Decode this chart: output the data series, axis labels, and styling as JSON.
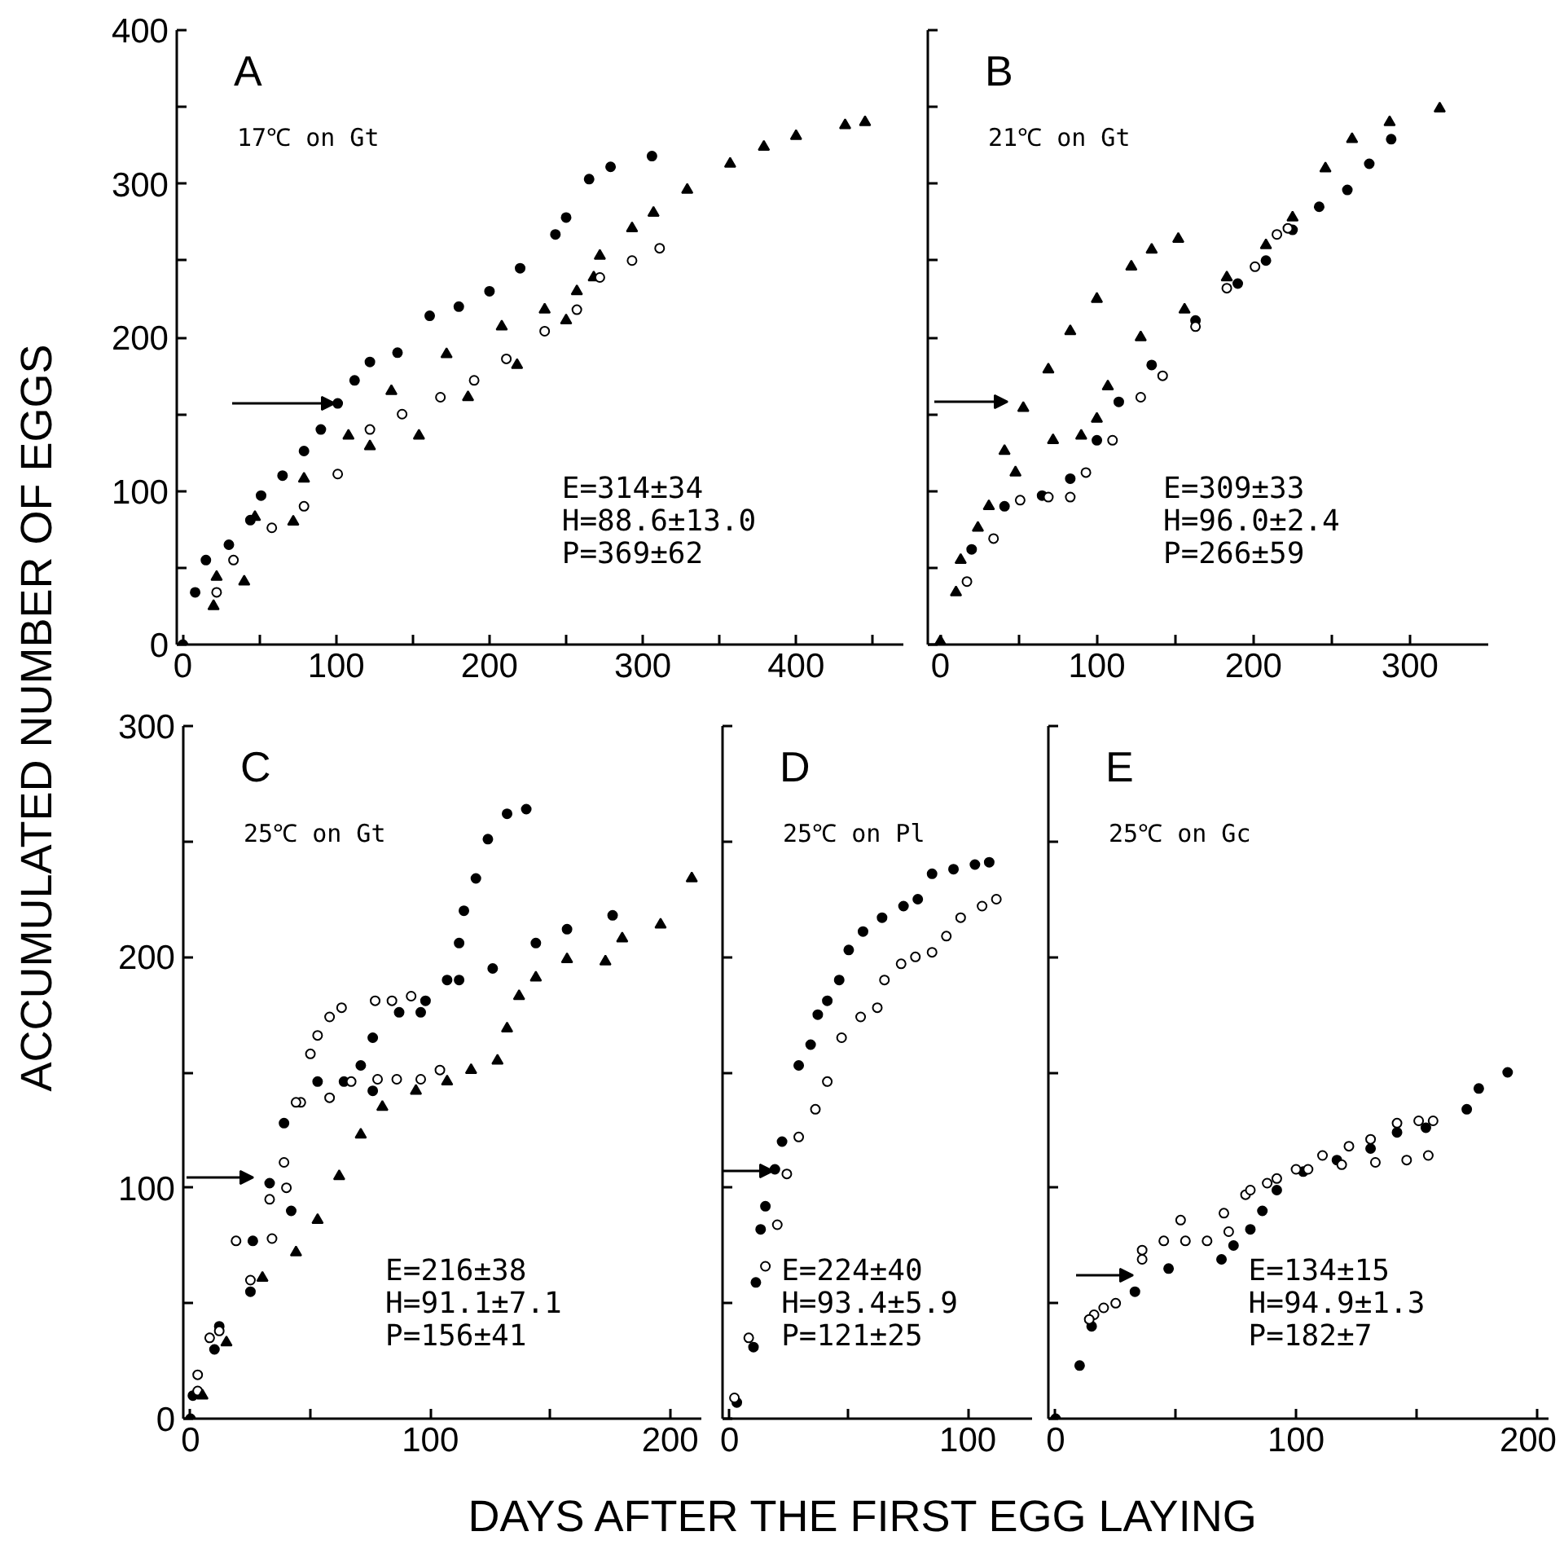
{
  "chart_data": [
    {
      "type": "scatter",
      "title": "A",
      "subtitle": "17℃ on Gt",
      "ylabel": "ACCUMULATED NUMBER OF EGGS",
      "xlim": [
        -4,
        470
      ],
      "ylim": [
        0,
        400
      ],
      "xticks": [
        0,
        {
          "value": 50,
          "label": null
        },
        100,
        {
          "value": 150,
          "label": null
        },
        200,
        {
          "value": 250,
          "label": null
        },
        300,
        {
          "value": 350,
          "label": null
        },
        400,
        {
          "value": 450,
          "label": null
        }
      ],
      "yticks": [
        0,
        {
          "value": 50,
          "label": null
        },
        100,
        {
          "value": 150,
          "label": null
        },
        200,
        {
          "value": 250,
          "label": null
        },
        300,
        {
          "value": 350,
          "label": null
        },
        400
      ],
      "annotations": [
        "E=314±34",
        "H=88.6±13.0",
        "P=369±62"
      ],
      "series": [
        {
          "marker": "circle",
          "color": "#000000",
          "x": [
            0,
            8,
            15,
            30,
            44,
            51,
            65,
            79,
            90,
            101,
            112,
            122,
            140,
            161,
            180,
            200,
            220,
            243,
            250,
            265,
            279,
            306
          ],
          "values": [
            0,
            34,
            55,
            65,
            81,
            97,
            110,
            126,
            140,
            157,
            172,
            184,
            190,
            214,
            220,
            230,
            245,
            267,
            278,
            303,
            311,
            318
          ]
        },
        {
          "marker": "triangle",
          "color": "#000000",
          "x": [
            22,
            47,
            79,
            108,
            136,
            172,
            208,
            236,
            257,
            272
          ],
          "values": [
            44,
            83,
            108,
            136,
            165,
            189,
            207,
            218,
            230,
            253
          ]
        },
        {
          "marker": "triangle",
          "color": "#000000",
          "x": [
            20,
            40,
            72,
            122,
            154,
            186,
            218,
            250,
            268,
            293,
            307,
            329,
            357,
            379,
            400,
            432,
            445
          ],
          "values": [
            25,
            41,
            80,
            129,
            136,
            161,
            182,
            211,
            239,
            271,
            281,
            296,
            313,
            324,
            331,
            338,
            340
          ]
        },
        {
          "marker": "circle",
          "color": "#ffffff",
          "x": [
            22,
            33,
            58,
            79,
            101,
            122,
            143,
            168,
            190,
            211,
            236,
            257,
            272,
            293,
            311
          ],
          "values": [
            34,
            55,
            76,
            90,
            111,
            140,
            150,
            161,
            172,
            186,
            204,
            218,
            239,
            250,
            258
          ]
        }
      ]
    },
    {
      "type": "scatter",
      "title": "B",
      "subtitle": "21℃ on Gt",
      "xlim": [
        -8,
        350
      ],
      "ylim": [
        0,
        400
      ],
      "tick_labels": "x",
      "xticks": [
        0,
        {
          "value": 50,
          "label": null
        },
        100,
        {
          "value": 150,
          "label": null
        },
        200,
        {
          "value": 250,
          "label": null
        },
        300
      ],
      "yticks": [
        0,
        {
          "value": 50,
          "label": null
        },
        100,
        {
          "value": 150,
          "label": null
        },
        200,
        {
          "value": 250,
          "label": null
        },
        300,
        {
          "value": 350,
          "label": null
        },
        400
      ],
      "annotations": [
        "E=309±33",
        "H=96.0±2.4",
        "P=266±59"
      ],
      "series": [
        {
          "marker": "triangle",
          "color": "#000000",
          "x": [
            0,
            10,
            24,
            41,
            53,
            69,
            83,
            100,
            122,
            135,
            152
          ],
          "values": [
            2,
            34,
            76,
            126,
            154,
            179,
            204,
            225,
            246,
            257,
            264
          ]
        },
        {
          "marker": "triangle",
          "color": "#000000",
          "x": [
            13,
            31,
            48,
            72,
            90,
            100,
            107,
            128,
            156,
            183,
            208,
            225,
            246,
            263,
            287,
            319
          ],
          "values": [
            55,
            90,
            112,
            133,
            136,
            147,
            168,
            200,
            218,
            239,
            260,
            278,
            310,
            329,
            340,
            349
          ]
        },
        {
          "marker": "circle",
          "color": "#000000",
          "x": [
            20,
            41,
            65,
            83,
            100,
            114,
            135,
            163,
            190,
            208,
            225,
            242,
            260,
            274,
            288
          ],
          "values": [
            62,
            90,
            97,
            108,
            133,
            158,
            182,
            211,
            235,
            250,
            270,
            285,
            296,
            313,
            329
          ]
        },
        {
          "marker": "circle",
          "color": "#ffffff",
          "x": [
            17,
            34,
            51,
            69,
            83,
            93,
            110,
            128,
            142,
            163,
            183,
            201,
            215,
            222
          ],
          "values": [
            41,
            69,
            94,
            96,
            96,
            112,
            133,
            161,
            175,
            207,
            232,
            246,
            267,
            271
          ]
        }
      ]
    },
    {
      "type": "scatter",
      "title": "C",
      "subtitle": "25℃ on Gt",
      "xlim": [
        -3,
        213
      ],
      "ylim": [
        0,
        300
      ],
      "xticks": [
        0,
        {
          "value": 50,
          "label": null
        },
        100,
        {
          "value": 150,
          "label": null
        },
        200
      ],
      "yticks": [
        0,
        {
          "value": 50,
          "label": null
        },
        100,
        {
          "value": 150,
          "label": null
        },
        200,
        {
          "value": 250,
          "label": null
        },
        300
      ],
      "annotations": [
        "E=216±38",
        "H=91.1±7.1",
        "P=156±41"
      ],
      "series": [
        {
          "marker": "circle",
          "color": "#000000",
          "x": [
            1,
            12,
            26,
            33,
            39,
            53,
            64,
            71,
            76,
            87,
            98,
            107,
            112,
            114,
            119,
            124,
            132,
            140
          ],
          "values": [
            10,
            40,
            77,
            102,
            128,
            146,
            146,
            153,
            165,
            176,
            181,
            190,
            206,
            220,
            234,
            251,
            262,
            264
          ]
        },
        {
          "marker": "circle",
          "color": "#000000",
          "x": [
            0,
            10,
            25,
            42,
            76,
            96,
            112,
            126,
            144,
            157,
            176
          ],
          "values": [
            0,
            30,
            55,
            90,
            142,
            176,
            190,
            195,
            206,
            212,
            218
          ]
        },
        {
          "marker": "circle",
          "color": "#ffffff",
          "x": [
            3,
            8,
            19,
            33,
            39,
            46,
            50,
            53,
            58,
            63,
            77,
            84,
            92
          ],
          "values": [
            19,
            35,
            77,
            95,
            111,
            137,
            158,
            166,
            174,
            178,
            181,
            181,
            183
          ]
        },
        {
          "marker": "circle",
          "color": "#ffffff",
          "x": [
            3,
            12,
            25,
            34,
            40,
            44,
            58,
            67,
            78,
            86,
            96,
            104
          ],
          "values": [
            12,
            38,
            60,
            78,
            100,
            137,
            139,
            146,
            147,
            147,
            147,
            151
          ]
        },
        {
          "marker": "triangle",
          "color": "#000000",
          "x": [
            5,
            15,
            30,
            44,
            53,
            62,
            71,
            80,
            94,
            107,
            117,
            128,
            132,
            137,
            144,
            157,
            173,
            180,
            196,
            209
          ],
          "values": [
            10,
            33,
            61,
            72,
            86,
            105,
            123,
            135,
            142,
            146,
            151,
            155,
            169,
            183,
            191,
            199,
            198,
            208,
            214,
            234
          ]
        }
      ]
    },
    {
      "type": "scatter",
      "title": "D",
      "subtitle": "25℃ on Pl",
      "xlabel": "DAYS AFTER THE FIRST EGG LAYING",
      "xlim": [
        -3,
        127
      ],
      "ylim": [
        0,
        300
      ],
      "tick_labels": "x",
      "xticks": [
        0,
        {
          "value": 50,
          "label": null
        },
        100
      ],
      "yticks": [
        0,
        {
          "value": 50,
          "label": null
        },
        {
          "value": 100,
          "label": null
        },
        {
          "value": 150,
          "label": null
        },
        {
          "value": 200,
          "label": null
        },
        {
          "value": 250,
          "label": null
        },
        {
          "value": 300,
          "label": null
        }
      ],
      "annotations": [
        "E=224±40",
        "H=93.4±5.9",
        "P=121±25"
      ],
      "series": [
        {
          "marker": "circle",
          "color": "#000000",
          "x": [
            3,
            10,
            11,
            13,
            15,
            19,
            22,
            29,
            34,
            37,
            41,
            46,
            50,
            56,
            64,
            73,
            79,
            85,
            94,
            103,
            109
          ],
          "values": [
            7,
            31,
            59,
            82,
            92,
            108,
            120,
            153,
            162,
            175,
            181,
            190,
            203,
            211,
            217,
            222,
            225,
            236,
            238,
            240,
            241
          ]
        },
        {
          "marker": "circle",
          "color": "#ffffff",
          "x": [
            2,
            8,
            15,
            20,
            24,
            29,
            36,
            41,
            47,
            55,
            62,
            65,
            72,
            78,
            85,
            91,
            97,
            106,
            112
          ],
          "values": [
            9,
            35,
            66,
            84,
            106,
            122,
            134,
            146,
            165,
            174,
            178,
            190,
            197,
            200,
            202,
            209,
            217,
            222,
            225
          ]
        }
      ]
    },
    {
      "type": "scatter",
      "title": "E",
      "subtitle": "25℃ on Gc",
      "xlim": [
        -3,
        205
      ],
      "ylim": [
        0,
        300
      ],
      "tick_labels": "x",
      "xticks": [
        0,
        {
          "value": 50,
          "label": null
        },
        100,
        {
          "value": 150,
          "label": null
        },
        200
      ],
      "yticks": [
        0,
        {
          "value": 50,
          "label": null
        },
        {
          "value": 100,
          "label": null
        },
        {
          "value": 150,
          "label": null
        },
        {
          "value": 200,
          "label": null
        },
        {
          "value": 250,
          "label": null
        },
        {
          "value": 300,
          "label": null
        }
      ],
      "annotations": [
        "E=134±15",
        "H=94.9±1.3",
        "P=182±7"
      ],
      "series": [
        {
          "marker": "circle",
          "color": "#000000",
          "x": [
            0,
            10,
            15,
            33,
            47,
            69,
            74,
            81,
            86,
            92,
            103,
            117,
            131,
            142,
            154,
            171,
            176,
            188
          ],
          "values": [
            0,
            23,
            40,
            55,
            65,
            69,
            75,
            82,
            90,
            99,
            107,
            112,
            117,
            124,
            126,
            134,
            143,
            150
          ]
        },
        {
          "marker": "circle",
          "color": "#ffffff",
          "x": [
            16,
            25,
            36,
            45,
            52,
            70,
            79,
            88,
            100,
            111,
            122,
            131,
            142,
            151,
            157
          ],
          "values": [
            45,
            50,
            69,
            77,
            86,
            89,
            97,
            102,
            108,
            114,
            118,
            121,
            128,
            129,
            129
          ]
        },
        {
          "marker": "circle",
          "color": "#ffffff",
          "x": [
            14,
            20,
            36,
            54,
            63,
            72,
            81,
            92,
            105,
            119,
            133,
            146,
            155
          ],
          "values": [
            43,
            48,
            73,
            77,
            77,
            81,
            99,
            104,
            108,
            110,
            111,
            112,
            114
          ]
        }
      ]
    }
  ]
}
